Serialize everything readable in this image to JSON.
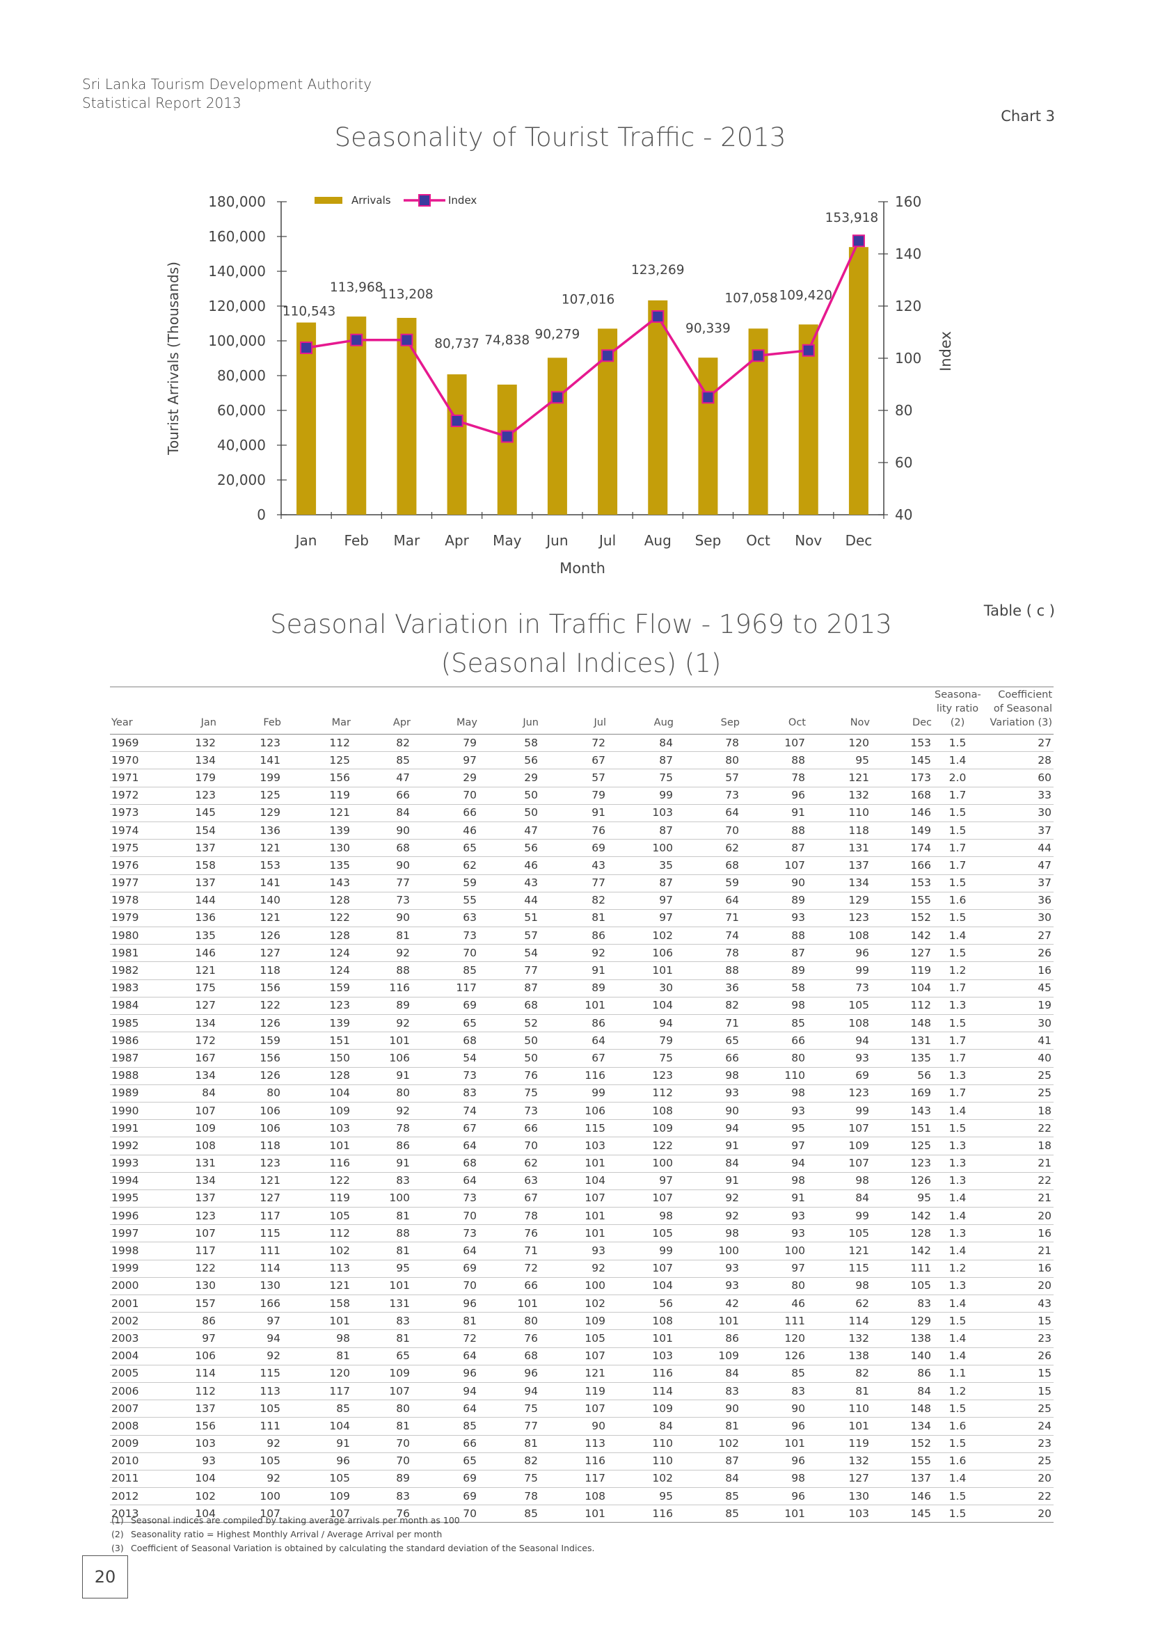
{
  "header": {
    "org": "Sri Lanka Tourism Development Authority",
    "report": "Statistical Report 2013",
    "chart_number": "Chart 3",
    "table_number": "Table ( c )",
    "page_number": "20"
  },
  "chart_data": {
    "type": "bar",
    "title": "Seasonality of Tourist Traffic - 2013",
    "xlabel": "Month",
    "ylabel": "Tourist Arrivals (Thousands)",
    "y2label": "Index",
    "categories": [
      "Jan",
      "Feb",
      "Mar",
      "Apr",
      "May",
      "Jun",
      "Jul",
      "Aug",
      "Sep",
      "Oct",
      "Nov",
      "Dec"
    ],
    "ylim": [
      0,
      180000
    ],
    "yticks": [
      "0",
      "20,000",
      "40,000",
      "60,000",
      "80,000",
      "100,000",
      "120,000",
      "140,000",
      "160,000",
      "180,000"
    ],
    "y2lim": [
      40,
      160
    ],
    "y2ticks": [
      "40",
      "60",
      "80",
      "100",
      "120",
      "140",
      "160"
    ],
    "legend": {
      "position": "top-left",
      "items": [
        "Arrivals",
        "Index"
      ]
    },
    "series": [
      {
        "name": "Arrivals",
        "kind": "bar",
        "color": "#c49e0a",
        "values": [
          110543,
          113968,
          113208,
          80737,
          74838,
          90279,
          107016,
          123269,
          90339,
          107058,
          109420,
          153918
        ],
        "labels": [
          "110,543",
          "113,968",
          "113,208",
          "80,737",
          "74,838",
          "90,279",
          "107,016",
          "123,269",
          "90,339",
          "107,058",
          "109,420",
          "153,918"
        ]
      },
      {
        "name": "Index",
        "kind": "line",
        "axis": "right",
        "color": "#e6198f",
        "marker_color": "#3a3a9e",
        "values": [
          104,
          107,
          107,
          76,
          70,
          85,
          101,
          116,
          85,
          101,
          103,
          145
        ]
      }
    ]
  },
  "table": {
    "title": "Seasonal Variation in Traffic Flow - 1969 to 2013",
    "subtitle": "(Seasonal Indices) (1)",
    "columns": [
      "Year",
      "Jan",
      "Feb",
      "Mar",
      "Apr",
      "May",
      "Jun",
      "Jul",
      "Aug",
      "Sep",
      "Oct",
      "Nov",
      "Dec",
      "Seasona- lity ratio (2)",
      "Coefficient of Seasonal Variation (3)"
    ],
    "col_seasonality": [
      "Seasona-",
      "lity ratio",
      "(2)"
    ],
    "col_coefficient": [
      "Coefficient",
      "of Seasonal",
      "Variation (3)"
    ],
    "rows": [
      [
        "1969",
        "132",
        "123",
        "112",
        "82",
        "79",
        "58",
        "72",
        "84",
        "78",
        "107",
        "120",
        "153",
        "1.5",
        "27"
      ],
      [
        "1970",
        "134",
        "141",
        "125",
        "85",
        "97",
        "56",
        "67",
        "87",
        "80",
        "88",
        "95",
        "145",
        "1.4",
        "28"
      ],
      [
        "1971",
        "179",
        "199",
        "156",
        "47",
        "29",
        "29",
        "57",
        "75",
        "57",
        "78",
        "121",
        "173",
        "2.0",
        "60"
      ],
      [
        "1972",
        "123",
        "125",
        "119",
        "66",
        "70",
        "50",
        "79",
        "99",
        "73",
        "96",
        "132",
        "168",
        "1.7",
        "33"
      ],
      [
        "1973",
        "145",
        "129",
        "121",
        "84",
        "66",
        "50",
        "91",
        "103",
        "64",
        "91",
        "110",
        "146",
        "1.5",
        "30"
      ],
      [
        "1974",
        "154",
        "136",
        "139",
        "90",
        "46",
        "47",
        "76",
        "87",
        "70",
        "88",
        "118",
        "149",
        "1.5",
        "37"
      ],
      [
        "1975",
        "137",
        "121",
        "130",
        "68",
        "65",
        "56",
        "69",
        "100",
        "62",
        "87",
        "131",
        "174",
        "1.7",
        "44"
      ],
      [
        "1976",
        "158",
        "153",
        "135",
        "90",
        "62",
        "46",
        "43",
        "35",
        "68",
        "107",
        "137",
        "166",
        "1.7",
        "47"
      ],
      [
        "1977",
        "137",
        "141",
        "143",
        "77",
        "59",
        "43",
        "77",
        "87",
        "59",
        "90",
        "134",
        "153",
        "1.5",
        "37"
      ],
      [
        "1978",
        "144",
        "140",
        "128",
        "73",
        "55",
        "44",
        "82",
        "97",
        "64",
        "89",
        "129",
        "155",
        "1.6",
        "36"
      ],
      [
        "1979",
        "136",
        "121",
        "122",
        "90",
        "63",
        "51",
        "81",
        "97",
        "71",
        "93",
        "123",
        "152",
        "1.5",
        "30"
      ],
      [
        "1980",
        "135",
        "126",
        "128",
        "81",
        "73",
        "57",
        "86",
        "102",
        "74",
        "88",
        "108",
        "142",
        "1.4",
        "27"
      ],
      [
        "1981",
        "146",
        "127",
        "124",
        "92",
        "70",
        "54",
        "92",
        "106",
        "78",
        "87",
        "96",
        "127",
        "1.5",
        "26"
      ],
      [
        "1982",
        "121",
        "118",
        "124",
        "88",
        "85",
        "77",
        "91",
        "101",
        "88",
        "89",
        "99",
        "119",
        "1.2",
        "16"
      ],
      [
        "1983",
        "175",
        "156",
        "159",
        "116",
        "117",
        "87",
        "89",
        "30",
        "36",
        "58",
        "73",
        "104",
        "1.7",
        "45"
      ],
      [
        "1984",
        "127",
        "122",
        "123",
        "89",
        "69",
        "68",
        "101",
        "104",
        "82",
        "98",
        "105",
        "112",
        "1.3",
        "19"
      ],
      [
        "1985",
        "134",
        "126",
        "139",
        "92",
        "65",
        "52",
        "86",
        "94",
        "71",
        "85",
        "108",
        "148",
        "1.5",
        "30"
      ],
      [
        "1986",
        "172",
        "159",
        "151",
        "101",
        "68",
        "50",
        "64",
        "79",
        "65",
        "66",
        "94",
        "131",
        "1.7",
        "41"
      ],
      [
        "1987",
        "167",
        "156",
        "150",
        "106",
        "54",
        "50",
        "67",
        "75",
        "66",
        "80",
        "93",
        "135",
        "1.7",
        "40"
      ],
      [
        "1988",
        "134",
        "126",
        "128",
        "91",
        "73",
        "76",
        "116",
        "123",
        "98",
        "110",
        "69",
        "56",
        "1.3",
        "25"
      ],
      [
        "1989",
        "84",
        "80",
        "104",
        "80",
        "83",
        "75",
        "99",
        "112",
        "93",
        "98",
        "123",
        "169",
        "1.7",
        "25"
      ],
      [
        "1990",
        "107",
        "106",
        "109",
        "92",
        "74",
        "73",
        "106",
        "108",
        "90",
        "93",
        "99",
        "143",
        "1.4",
        "18"
      ],
      [
        "1991",
        "109",
        "106",
        "103",
        "78",
        "67",
        "66",
        "115",
        "109",
        "94",
        "95",
        "107",
        "151",
        "1.5",
        "22"
      ],
      [
        "1992",
        "108",
        "118",
        "101",
        "86",
        "64",
        "70",
        "103",
        "122",
        "91",
        "97",
        "109",
        "125",
        "1.3",
        "18"
      ],
      [
        "1993",
        "131",
        "123",
        "116",
        "91",
        "68",
        "62",
        "101",
        "100",
        "84",
        "94",
        "107",
        "123",
        "1.3",
        "21"
      ],
      [
        "1994",
        "134",
        "121",
        "122",
        "83",
        "64",
        "63",
        "104",
        "97",
        "91",
        "98",
        "98",
        "126",
        "1.3",
        "22"
      ],
      [
        "1995",
        "137",
        "127",
        "119",
        "100",
        "73",
        "67",
        "107",
        "107",
        "92",
        "91",
        "84",
        "95",
        "1.4",
        "21"
      ],
      [
        "1996",
        "123",
        "117",
        "105",
        "81",
        "70",
        "78",
        "101",
        "98",
        "92",
        "93",
        "99",
        "142",
        "1.4",
        "20"
      ],
      [
        "1997",
        "107",
        "115",
        "112",
        "88",
        "73",
        "76",
        "101",
        "105",
        "98",
        "93",
        "105",
        "128",
        "1.3",
        "16"
      ],
      [
        "1998",
        "117",
        "111",
        "102",
        "81",
        "64",
        "71",
        "93",
        "99",
        "100",
        "100",
        "121",
        "142",
        "1.4",
        "21"
      ],
      [
        "1999",
        "122",
        "114",
        "113",
        "95",
        "69",
        "72",
        "92",
        "107",
        "93",
        "97",
        "115",
        "111",
        "1.2",
        "16"
      ],
      [
        "2000",
        "130",
        "130",
        "121",
        "101",
        "70",
        "66",
        "100",
        "104",
        "93",
        "80",
        "98",
        "105",
        "1.3",
        "20"
      ],
      [
        "2001",
        "157",
        "166",
        "158",
        "131",
        "96",
        "101",
        "102",
        "56",
        "42",
        "46",
        "62",
        "83",
        "1.4",
        "43"
      ],
      [
        "2002",
        "86",
        "97",
        "101",
        "83",
        "81",
        "80",
        "109",
        "108",
        "101",
        "111",
        "114",
        "129",
        "1.5",
        "15"
      ],
      [
        "2003",
        "97",
        "94",
        "98",
        "81",
        "72",
        "76",
        "105",
        "101",
        "86",
        "120",
        "132",
        "138",
        "1.4",
        "23"
      ],
      [
        "2004",
        "106",
        "92",
        "81",
        "65",
        "64",
        "68",
        "107",
        "103",
        "109",
        "126",
        "138",
        "140",
        "1.4",
        "26"
      ],
      [
        "2005",
        "114",
        "115",
        "120",
        "109",
        "96",
        "96",
        "121",
        "116",
        "84",
        "85",
        "82",
        "86",
        "1.1",
        "15"
      ],
      [
        "2006",
        "112",
        "113",
        "117",
        "107",
        "94",
        "94",
        "119",
        "114",
        "83",
        "83",
        "81",
        "84",
        "1.2",
        "15"
      ],
      [
        "2007",
        "137",
        "105",
        "85",
        "80",
        "64",
        "75",
        "107",
        "109",
        "90",
        "90",
        "110",
        "148",
        "1.5",
        "25"
      ],
      [
        "2008",
        "156",
        "111",
        "104",
        "81",
        "85",
        "77",
        "90",
        "84",
        "81",
        "96",
        "101",
        "134",
        "1.6",
        "24"
      ],
      [
        "2009",
        "103",
        "92",
        "91",
        "70",
        "66",
        "81",
        "113",
        "110",
        "102",
        "101",
        "119",
        "152",
        "1.5",
        "23"
      ],
      [
        "2010",
        "93",
        "105",
        "96",
        "70",
        "65",
        "82",
        "116",
        "110",
        "87",
        "96",
        "132",
        "155",
        "1.6",
        "25"
      ],
      [
        "2011",
        "104",
        "92",
        "105",
        "89",
        "69",
        "75",
        "117",
        "102",
        "84",
        "98",
        "127",
        "137",
        "1.4",
        "20"
      ],
      [
        "2012",
        "102",
        "100",
        "109",
        "83",
        "69",
        "78",
        "108",
        "95",
        "85",
        "96",
        "130",
        "146",
        "1.5",
        "22"
      ],
      [
        "2013",
        "104",
        "107",
        "107",
        "76",
        "70",
        "85",
        "101",
        "116",
        "85",
        "101",
        "103",
        "145",
        "1.5",
        "20"
      ]
    ],
    "notes": [
      {
        "num": "(1)",
        "text": "Seasonal indices are compiled by taking average arrivals per month as 100"
      },
      {
        "num": "(2)",
        "text": "Seasonality ratio = Highest Monthly Arrival / Average Arrival per month"
      },
      {
        "num": "(3)",
        "text": "Coefficient of Seasonal Variation is obtained by calculating the standard deviation of the Seasonal Indices."
      }
    ]
  }
}
